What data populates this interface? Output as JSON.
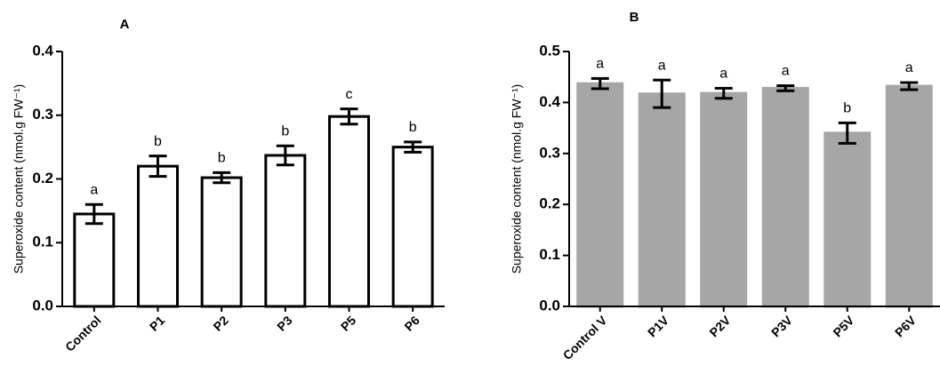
{
  "chart_data": [
    {
      "type": "bar",
      "title": "A",
      "ylabel": "Superoxide content (nmol.g FW⁻¹)",
      "categories": [
        "Control",
        "P1",
        "P2",
        "P3",
        "P5",
        "P6"
      ],
      "values": [
        0.145,
        0.22,
        0.202,
        0.237,
        0.298,
        0.25
      ],
      "errors": [
        0.015,
        0.016,
        0.008,
        0.015,
        0.012,
        0.008
      ],
      "annotations": [
        "a",
        "b",
        "b",
        "b",
        "c",
        "b"
      ],
      "color": "#ffffff",
      "edgecolor": "#000000",
      "ylim": [
        0,
        0.4
      ],
      "yticks": [
        {
          "value": 0,
          "label": "0.0"
        },
        0.1,
        0.2,
        0.3,
        0.4
      ]
    },
    {
      "type": "bar",
      "title": "B",
      "ylabel": "Superoxide content (nmol.g FW⁻¹)",
      "categories": [
        "Control V",
        "P1V",
        "P2V",
        "P3V",
        "P5V",
        "P6V"
      ],
      "values": [
        0.437,
        0.417,
        0.418,
        0.428,
        0.34,
        0.432
      ],
      "errors": [
        0.01,
        0.027,
        0.01,
        0.005,
        0.02,
        0.007
      ],
      "annotations": [
        "a",
        "a",
        "a",
        "a",
        "b",
        "a"
      ],
      "color": "#a6a6a6",
      "edgecolor": "#a6a6a6",
      "ylim": [
        0,
        0.5
      ],
      "yticks": [
        {
          "value": 0,
          "label": "0.0"
        },
        0.1,
        0.2,
        0.3,
        0.4,
        0.5
      ]
    }
  ]
}
